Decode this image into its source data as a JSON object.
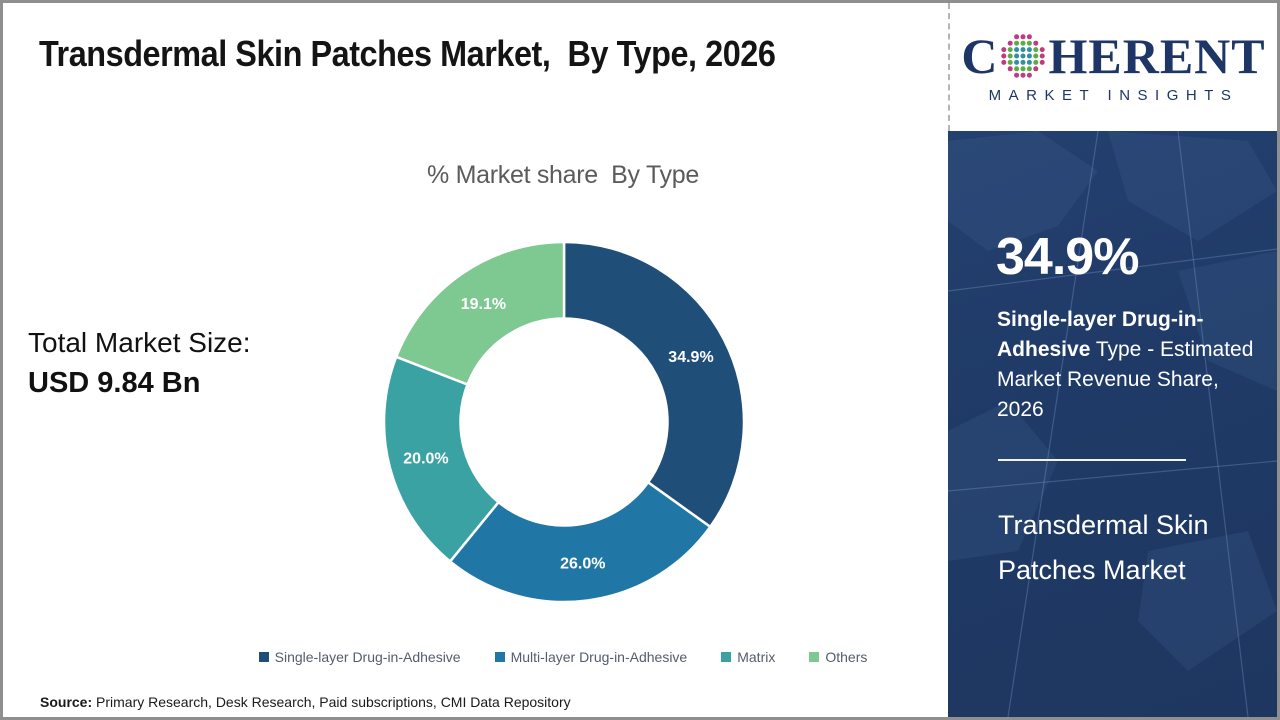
{
  "header": {
    "title": "Transdermal Skin Patches Market,  By Type, 2026"
  },
  "logo": {
    "name_prefix": "C",
    "name_suffix": "HERENT",
    "subtitle": "MARKET INSIGHTS",
    "brand_color": "#1e3666"
  },
  "chart_data": {
    "type": "pie",
    "donut": true,
    "title": "% Market share  By Type",
    "categories": [
      "Single-layer Drug-in-Adhesive",
      "Multi-layer Drug-in-Adhesive",
      "Matrix",
      "Others"
    ],
    "values": [
      34.9,
      26.0,
      20.0,
      19.1
    ],
    "value_labels": [
      "34.9%",
      "26.0%",
      "20.0%",
      "19.1%"
    ],
    "colors": [
      "#1f4e79",
      "#2076a5",
      "#3aa2a2",
      "#7ec891"
    ],
    "start_angle_deg": 0,
    "direction": "clockwise",
    "hole_ratio": 0.575,
    "legend_position": "bottom",
    "slice_label_color": "#ffffff"
  },
  "left_panel": {
    "label": "Total Market Size:",
    "value": "USD 9.84 Bn"
  },
  "sidebar": {
    "stat_value": "34.9%",
    "stat_desc_bold": "Single-layer Drug-in-Adhesive",
    "stat_desc_rest": " Type - Estimated Market Revenue Share, 2026",
    "market_name": "Transdermal Skin Patches Market",
    "bg_color": "#1f3a66"
  },
  "footer": {
    "source_label": "Source:",
    "source_text": " Primary Research, Desk Research, Paid subscriptions, CMI Data Repository"
  }
}
